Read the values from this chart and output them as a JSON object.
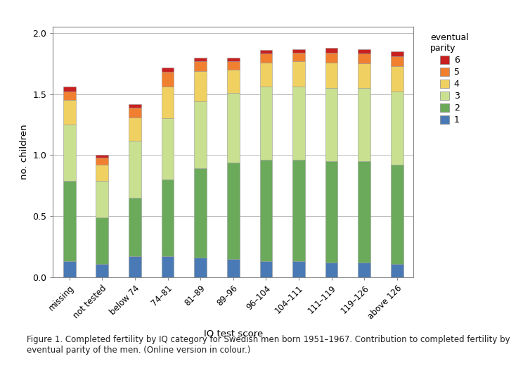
{
  "categories": [
    "missing",
    "not tested",
    "below 74",
    "74–81",
    "81–89",
    "89–96",
    "96–104",
    "104–111",
    "111–119",
    "119–126",
    "above 126"
  ],
  "parity_labels": [
    "1",
    "2",
    "3",
    "4",
    "5",
    "6"
  ],
  "colors": [
    "#4a7ab5",
    "#6aaa5a",
    "#c8e090",
    "#f0d060",
    "#f08030",
    "#c82020"
  ],
  "data": {
    "parity1": [
      0.13,
      0.11,
      0.17,
      0.17,
      0.16,
      0.15,
      0.13,
      0.13,
      0.12,
      0.12,
      0.11
    ],
    "parity2": [
      0.66,
      0.38,
      0.48,
      0.63,
      0.73,
      0.79,
      0.83,
      0.83,
      0.83,
      0.83,
      0.81
    ],
    "parity3": [
      0.46,
      0.3,
      0.47,
      0.5,
      0.55,
      0.57,
      0.6,
      0.6,
      0.6,
      0.6,
      0.6
    ],
    "parity4": [
      0.2,
      0.13,
      0.19,
      0.26,
      0.25,
      0.19,
      0.2,
      0.21,
      0.21,
      0.2,
      0.21
    ],
    "parity5": [
      0.07,
      0.06,
      0.08,
      0.12,
      0.08,
      0.07,
      0.07,
      0.07,
      0.08,
      0.08,
      0.08
    ],
    "parity6": [
      0.04,
      0.02,
      0.03,
      0.04,
      0.03,
      0.03,
      0.03,
      0.03,
      0.04,
      0.04,
      0.04
    ]
  },
  "ylabel": "no. children",
  "xlabel": "IQ test score",
  "ylim": [
    0,
    2.05
  ],
  "yticks": [
    0,
    0.5,
    1.0,
    1.5,
    2.0
  ],
  "legend_title": "eventual\nparity",
  "background_color": "#ffffff",
  "grid_color": "#bbbbbb",
  "caption": "Figure 1. Completed fertility by IQ category for Swedish men born 1951–1967. Contribution to completed fertility by\neventual parity of the men. (Online version in colour.)"
}
